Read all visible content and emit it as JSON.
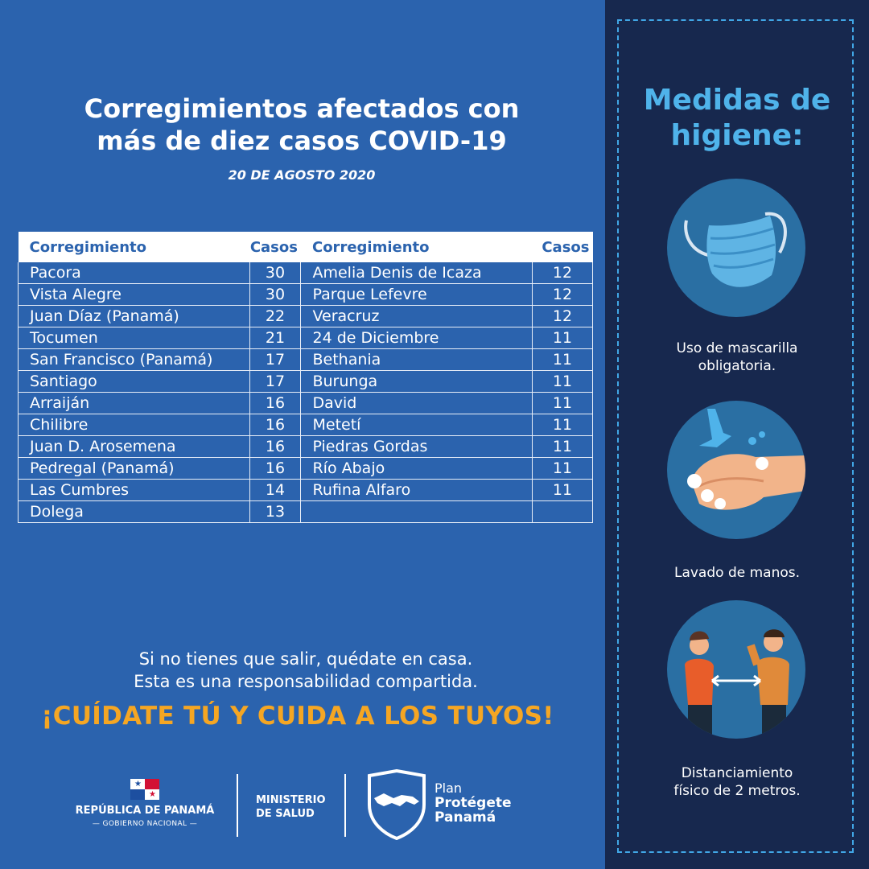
{
  "title_line1": "Corregimientos afectados con",
  "title_line2": "más de diez casos COVID-19",
  "date": "20 DE  AGOSTO  2020",
  "table": {
    "headers": [
      "Corregimiento",
      "Casos",
      "Corregimiento",
      "Casos"
    ],
    "rows": [
      {
        "a": "Pacora",
        "a_n": "30",
        "b": "Amelia Denis de Icaza",
        "b_n": "12"
      },
      {
        "a": "Vista Alegre",
        "a_n": "30",
        "b": "Parque Lefevre",
        "b_n": "12"
      },
      {
        "a": "Juan Díaz (Panamá)",
        "a_n": "22",
        "b": "Veracruz",
        "b_n": "12"
      },
      {
        "a": "Tocumen",
        "a_n": "21",
        "b": "24 de Diciembre",
        "b_n": "11"
      },
      {
        "a": "San Francisco (Panamá)",
        "a_n": "17",
        "b": "Bethania",
        "b_n": "11"
      },
      {
        "a": "Santiago",
        "a_n": "17",
        "b": "Burunga",
        "b_n": "11"
      },
      {
        "a": "Arraiján",
        "a_n": "16",
        "b": "David",
        "b_n": "11"
      },
      {
        "a": "Chilibre",
        "a_n": "16",
        "b": "Metetí",
        "b_n": "11"
      },
      {
        "a": "Juan D. Arosemena",
        "a_n": "16",
        "b": "Piedras Gordas",
        "b_n": "11"
      },
      {
        "a": "Pedregal (Panamá)",
        "a_n": "16",
        "b": "Río Abajo",
        "b_n": "11"
      },
      {
        "a": "Las Cumbres",
        "a_n": "14",
        "b": "Rufina Alfaro",
        "b_n": "11"
      },
      {
        "a": "Dolega",
        "a_n": "13",
        "b": "",
        "b_n": ""
      }
    ]
  },
  "message_line1": "Si no tienes que salir, quédate en casa.",
  "message_line2": "Esta es una responsabilidad compartida.",
  "slogan": "¡CUÍDATE TÚ Y CUIDA A LOS TUYOS!",
  "logos": {
    "republic": "REPÚBLICA DE PANAMÁ",
    "gobierno": "GOBIERNO NACIONAL",
    "ministerio_line1": "MINISTERIO",
    "ministerio_line2": "DE SALUD",
    "plan_line1": "Plan",
    "plan_line2": "Protégete",
    "plan_line3": "Panamá"
  },
  "panel": {
    "title_line1": "Medidas de",
    "title_line2": "higiene:",
    "items": [
      {
        "icon": "face-mask-icon",
        "line1": "Uso de mascarilla",
        "line2": "obligatoria."
      },
      {
        "icon": "hand-washing-icon",
        "line1": "Lavado de manos.",
        "line2": ""
      },
      {
        "icon": "social-distancing-icon",
        "line1": "Distanciamiento",
        "line2": "físico de 2 metros."
      }
    ]
  },
  "colors": {
    "background": "#2b63ae",
    "panel": "#17284e",
    "accent_orange": "#f5a623",
    "accent_cyan": "#4fb3ea"
  }
}
